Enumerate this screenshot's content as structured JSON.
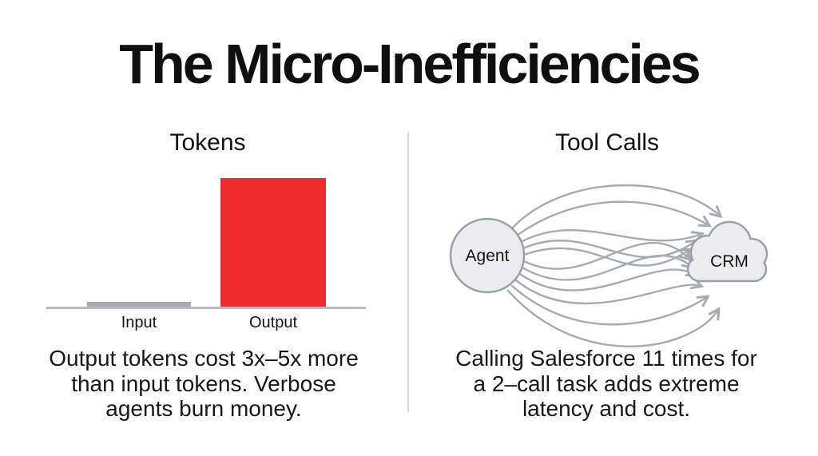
{
  "title": "The Micro-Inefficiencies",
  "left_panel": {
    "heading": "Tokens",
    "chart_data": {
      "type": "bar",
      "title": "Tokens",
      "categories": [
        "Input",
        "Output"
      ],
      "values": [
        0.05,
        1.0
      ],
      "value_note": "relative bar heights; no numeric axis shown",
      "xlabel": "",
      "ylabel": "",
      "ylim": [
        0,
        1.1
      ],
      "grid": false,
      "legend": false,
      "bar_colors": [
        "#a8adb2",
        "#ee2a2b"
      ]
    },
    "caption_lines": [
      "Output tokens cost 3x–5x more",
      "than input tokens. Verbose",
      "agents burn money."
    ]
  },
  "right_panel": {
    "heading": "Tool Calls",
    "diagram": {
      "type": "flow",
      "source_label": "Agent",
      "target_label": "CRM",
      "arrow_count": 11,
      "arrow_color": "#a7abb0"
    },
    "caption_lines": [
      "Calling Salesforce 11 times for",
      "a 2–call task adds extreme",
      "latency and cost."
    ]
  },
  "colors": {
    "background": "#ffffff",
    "title_text": "#0f0f10",
    "body_text": "#17181a",
    "accent_red": "#ee2a2b",
    "neutral_gray": "#a8adb2",
    "axis_line": "#b9bdc1",
    "divider": "#d6d6da",
    "node_fill": "#ececee",
    "node_stroke": "#9ba0a6"
  }
}
